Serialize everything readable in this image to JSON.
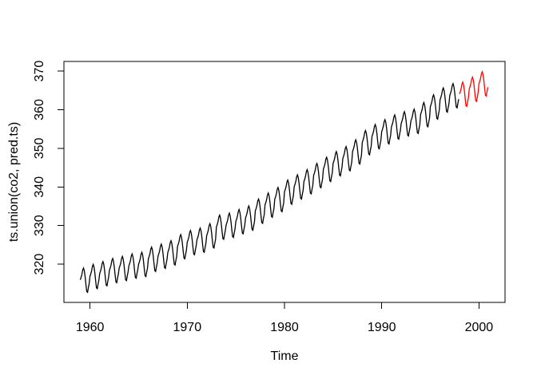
{
  "figure": {
    "background": "#FFFFFF",
    "axis_color": "#000000"
  },
  "chart_data": {
    "type": "line",
    "title": "",
    "xlabel": "Time",
    "ylabel": "ts.union(co2, pred.ts)",
    "x_ticks": [
      1960,
      1970,
      1980,
      1990,
      2000
    ],
    "y_ticks": [
      320,
      330,
      340,
      350,
      360,
      370
    ],
    "xlim": [
      1957.32,
      2002.68
    ],
    "ylim": [
      310.1,
      372.5
    ],
    "grid": false,
    "legend": null,
    "frequency": 12,
    "seasonal_offsets": [
      -0.02,
      0.59,
      1.36,
      2.52,
      3.03,
      2.32,
      0.81,
      -1.26,
      -3.05,
      -3.25,
      -2.05,
      -0.99
    ],
    "series": [
      {
        "name": "co2",
        "color": "#000000",
        "start_year": 1959,
        "annual_means": [
          315.97,
          316.91,
          317.64,
          318.45,
          318.99,
          319.62,
          320.04,
          321.38,
          322.16,
          323.04,
          324.62,
          325.68,
          326.32,
          327.45,
          329.68,
          330.18,
          331.11,
          332.04,
          333.83,
          335.4,
          336.84,
          338.75,
          340.11,
          341.45,
          343.05,
          344.65,
          346.12,
          347.42,
          349.19,
          351.57,
          353.12,
          354.39,
          355.61,
          356.45,
          357.1,
          358.83,
          360.82,
          362.61,
          363.73
        ]
      },
      {
        "name": "pred.ts",
        "color": "#FF0000",
        "start_year": 1998,
        "annual_means": [
          364.1,
          365.4,
          366.8
        ]
      }
    ]
  }
}
